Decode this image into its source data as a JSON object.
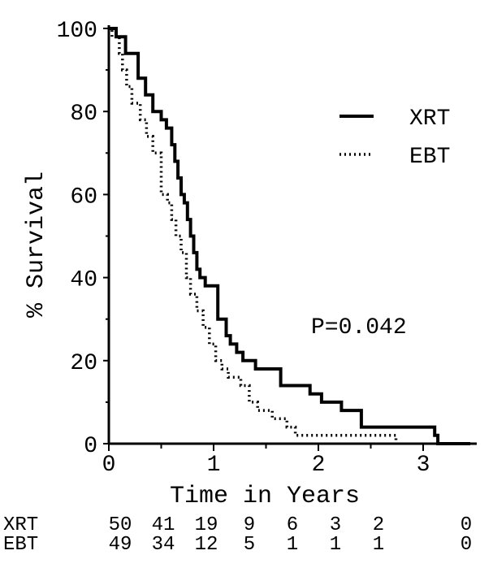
{
  "chart_data": {
    "type": "line",
    "xlabel": "Time in Years",
    "ylabel": "% Survival",
    "xlim": [
      0,
      3.45
    ],
    "ylim": [
      0,
      100
    ],
    "x_ticks": [
      "0",
      "1",
      "2",
      "3"
    ],
    "y_ticks": [
      "0",
      "20",
      "40",
      "60",
      "80",
      "100"
    ],
    "grid": false,
    "legend": "top-right",
    "annotation": "P=0.042",
    "series": [
      {
        "name": "XRT",
        "style": "solid",
        "points": [
          [
            0,
            100
          ],
          [
            0.07,
            100
          ],
          [
            0.07,
            98
          ],
          [
            0.16,
            98
          ],
          [
            0.16,
            94
          ],
          [
            0.28,
            94
          ],
          [
            0.28,
            88
          ],
          [
            0.35,
            88
          ],
          [
            0.35,
            84
          ],
          [
            0.42,
            84
          ],
          [
            0.42,
            80
          ],
          [
            0.5,
            80
          ],
          [
            0.5,
            78
          ],
          [
            0.55,
            78
          ],
          [
            0.55,
            76
          ],
          [
            0.6,
            76
          ],
          [
            0.6,
            72
          ],
          [
            0.63,
            72
          ],
          [
            0.63,
            68
          ],
          [
            0.66,
            68
          ],
          [
            0.66,
            64
          ],
          [
            0.69,
            64
          ],
          [
            0.69,
            60
          ],
          [
            0.72,
            60
          ],
          [
            0.72,
            58
          ],
          [
            0.75,
            58
          ],
          [
            0.75,
            54
          ],
          [
            0.78,
            54
          ],
          [
            0.78,
            50
          ],
          [
            0.81,
            50
          ],
          [
            0.81,
            46
          ],
          [
            0.84,
            46
          ],
          [
            0.84,
            42
          ],
          [
            0.87,
            42
          ],
          [
            0.87,
            40
          ],
          [
            0.92,
            40
          ],
          [
            0.92,
            38
          ],
          [
            1.04,
            38
          ],
          [
            1.04,
            30
          ],
          [
            1.12,
            30
          ],
          [
            1.12,
            26
          ],
          [
            1.16,
            26
          ],
          [
            1.16,
            24
          ],
          [
            1.22,
            24
          ],
          [
            1.22,
            22
          ],
          [
            1.28,
            22
          ],
          [
            1.28,
            20
          ],
          [
            1.4,
            20
          ],
          [
            1.4,
            18
          ],
          [
            1.64,
            18
          ],
          [
            1.64,
            14
          ],
          [
            1.92,
            14
          ],
          [
            1.92,
            12
          ],
          [
            2.03,
            12
          ],
          [
            2.03,
            10
          ],
          [
            2.22,
            10
          ],
          [
            2.22,
            8
          ],
          [
            2.41,
            8
          ],
          [
            2.41,
            4
          ],
          [
            3.11,
            4
          ],
          [
            3.11,
            2
          ],
          [
            3.14,
            2
          ],
          [
            3.14,
            0
          ],
          [
            3.45,
            0
          ]
        ]
      },
      {
        "name": "EBT",
        "style": "dotted",
        "points": [
          [
            0,
            100
          ],
          [
            0.03,
            100
          ],
          [
            0.03,
            98
          ],
          [
            0.1,
            98
          ],
          [
            0.1,
            94
          ],
          [
            0.13,
            94
          ],
          [
            0.13,
            90
          ],
          [
            0.17,
            90
          ],
          [
            0.17,
            86
          ],
          [
            0.22,
            86
          ],
          [
            0.22,
            82
          ],
          [
            0.3,
            82
          ],
          [
            0.3,
            78
          ],
          [
            0.36,
            78
          ],
          [
            0.36,
            74
          ],
          [
            0.42,
            74
          ],
          [
            0.42,
            70
          ],
          [
            0.5,
            70
          ],
          [
            0.5,
            60
          ],
          [
            0.56,
            60
          ],
          [
            0.56,
            58
          ],
          [
            0.6,
            58
          ],
          [
            0.6,
            54
          ],
          [
            0.64,
            54
          ],
          [
            0.64,
            50
          ],
          [
            0.69,
            50
          ],
          [
            0.69,
            46
          ],
          [
            0.74,
            46
          ],
          [
            0.74,
            40
          ],
          [
            0.78,
            40
          ],
          [
            0.78,
            36
          ],
          [
            0.84,
            36
          ],
          [
            0.84,
            32
          ],
          [
            0.9,
            32
          ],
          [
            0.9,
            28
          ],
          [
            0.96,
            28
          ],
          [
            0.96,
            24
          ],
          [
            1.02,
            24
          ],
          [
            1.02,
            20
          ],
          [
            1.08,
            20
          ],
          [
            1.08,
            18
          ],
          [
            1.14,
            18
          ],
          [
            1.14,
            16
          ],
          [
            1.26,
            16
          ],
          [
            1.26,
            14
          ],
          [
            1.34,
            14
          ],
          [
            1.34,
            10
          ],
          [
            1.42,
            10
          ],
          [
            1.42,
            8
          ],
          [
            1.56,
            8
          ],
          [
            1.56,
            6
          ],
          [
            1.7,
            6
          ],
          [
            1.7,
            4
          ],
          [
            1.78,
            4
          ],
          [
            1.78,
            2
          ],
          [
            2.74,
            2
          ],
          [
            2.74,
            0
          ]
        ]
      }
    ],
    "at_risk": {
      "columns": [
        "50",
        "41",
        "19",
        "9",
        "6",
        "3",
        "2",
        "0"
      ],
      "rows": [
        {
          "label": "XRT",
          "values": [
            "50",
            "41",
            "19",
            "9",
            "6",
            "3",
            "2",
            "0"
          ]
        },
        {
          "label": "EBT",
          "values": [
            "49",
            "34",
            "12",
            "5",
            "1",
            "1",
            "1",
            "0"
          ]
        }
      ]
    }
  }
}
